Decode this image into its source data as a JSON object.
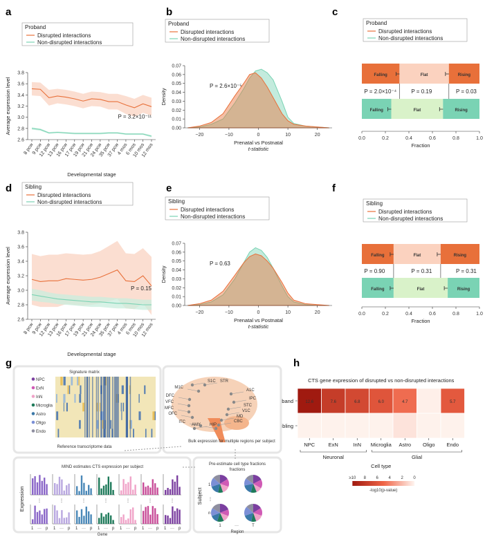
{
  "panel_letters": [
    "a",
    "b",
    "c",
    "d",
    "e",
    "f",
    "g",
    "h"
  ],
  "legend": {
    "proband": "Proband",
    "sibling": "Sibling",
    "disrupted": "Disrupted interactions",
    "nondisrupted": "Non-disrupted interactions"
  },
  "colors": {
    "disrupted": "#e8703a",
    "disrupted_band": "#f9d3c2",
    "nondisrupted": "#7ad3b4",
    "nondisrupted_band": "#c9eede",
    "density_overlap": "#c9b7a0"
  },
  "chart_data": [
    {
      "id": "a",
      "type": "line",
      "legend_title": "Proband",
      "categories": [
        "8 pcw",
        "9 pcw",
        "12 pcw",
        "13 pcw",
        "16 pcw",
        "17 pcw",
        "19 pcw",
        "21 pcw",
        "24 pcw",
        "35 pcw",
        "37 pcw",
        "4 mos",
        "6 mos",
        "10 mos",
        "12 mos"
      ],
      "xlabel": "Developmental stage",
      "ylabel": "Average expression level",
      "ylim": [
        2.6,
        3.8
      ],
      "yticks": [
        "2.6",
        "2.8",
        "3.0",
        "3.2",
        "3.4",
        "3.6",
        "3.8"
      ],
      "annotation": "P = 3.2×10⁻¹¹",
      "series": [
        {
          "name": "Disrupted interactions",
          "values": [
            3.51,
            3.5,
            3.35,
            3.38,
            3.36,
            3.33,
            3.29,
            3.33,
            3.32,
            3.28,
            3.28,
            3.22,
            3.17,
            3.24,
            3.19
          ],
          "band": [
            0.12,
            0.12,
            0.14,
            0.13,
            0.13,
            0.13,
            0.13,
            0.13,
            0.13,
            0.14,
            0.14,
            0.16,
            0.16,
            0.16,
            0.16
          ]
        },
        {
          "name": "Non-disrupted interactions",
          "values": [
            2.8,
            2.78,
            2.72,
            2.73,
            2.72,
            2.71,
            2.71,
            2.71,
            2.71,
            2.72,
            2.72,
            2.7,
            2.7,
            2.7,
            2.66
          ],
          "band": [
            0.02,
            0.02,
            0.015,
            0.015,
            0.015,
            0.015,
            0.015,
            0.015,
            0.015,
            0.015,
            0.015,
            0.015,
            0.015,
            0.015,
            0.02
          ]
        }
      ]
    },
    {
      "id": "b",
      "type": "area",
      "legend_title": "Proband",
      "xlabel": "Prenatal vs Postnatal",
      "xlabel2": "t-statistic",
      "ylabel": "Density",
      "xlim": [
        -25,
        25
      ],
      "ylim": [
        0,
        0.07
      ],
      "xticks": [
        "-20",
        "-10",
        "0",
        "10",
        "20"
      ],
      "yticks": [
        "0.00",
        "0.01",
        "0.02",
        "0.03",
        "0.04",
        "0.05",
        "0.06",
        "0.07"
      ],
      "annotation": "P = 2.6×10⁻⁵",
      "series": [
        {
          "name": "Disrupted interactions",
          "x": [
            -24,
            -20,
            -16,
            -12,
            -8,
            -5,
            -3,
            -1,
            1,
            3,
            5,
            8,
            10,
            12,
            16,
            20,
            24
          ],
          "values": [
            0.0,
            0.002,
            0.006,
            0.016,
            0.036,
            0.05,
            0.06,
            0.062,
            0.056,
            0.046,
            0.034,
            0.016,
            0.008,
            0.004,
            0.002,
            0.001,
            0.0
          ]
        },
        {
          "name": "Non-disrupted interactions",
          "x": [
            -24,
            -20,
            -16,
            -12,
            -8,
            -5,
            -3,
            -1,
            1,
            3,
            5,
            8,
            10,
            12,
            16,
            20,
            24
          ],
          "values": [
            0.0,
            0.001,
            0.004,
            0.01,
            0.028,
            0.044,
            0.056,
            0.064,
            0.066,
            0.062,
            0.054,
            0.03,
            0.012,
            0.005,
            0.002,
            0.001,
            0.0
          ]
        }
      ]
    },
    {
      "id": "c",
      "type": "bar",
      "legend_title": "Proband",
      "xlabel": "Fraction",
      "xticks": [
        "0.0",
        "0.2",
        "0.4",
        "0.6",
        "0.8",
        "1.0"
      ],
      "segments": [
        "Falling",
        "Flat",
        "Rising"
      ],
      "pvalues": [
        "P = 2.0×10⁻⁴",
        "P = 0.19",
        "P = 0.03"
      ],
      "series": [
        {
          "name": "Disrupted interactions",
          "values": [
            0.32,
            0.42,
            0.26
          ]
        },
        {
          "name": "Non-disrupted interactions",
          "values": [
            0.25,
            0.44,
            0.31
          ]
        }
      ]
    },
    {
      "id": "d",
      "type": "line",
      "legend_title": "Sibling",
      "categories": [
        "8 pcw",
        "9 pcw",
        "12 pcw",
        "13 pcw",
        "16 pcw",
        "17 pcw",
        "19 pcw",
        "21 pcw",
        "24 pcw",
        "35 pcw",
        "37 pcw",
        "4 mos",
        "6 mos",
        "10 mos",
        "12 mos"
      ],
      "xlabel": "Developmental stage",
      "ylabel": "Average expression level",
      "ylim": [
        2.6,
        3.8
      ],
      "yticks": [
        "2.6",
        "2.8",
        "3.0",
        "3.2",
        "3.4",
        "3.6",
        "3.8"
      ],
      "annotation": "P = 0.15",
      "series": [
        {
          "name": "Disrupted interactions",
          "values": [
            3.15,
            3.12,
            3.13,
            3.13,
            3.16,
            3.15,
            3.14,
            3.15,
            3.18,
            3.23,
            3.28,
            3.13,
            3.12,
            3.2,
            3.06
          ],
          "band": [
            0.35,
            0.35,
            0.36,
            0.36,
            0.35,
            0.35,
            0.35,
            0.35,
            0.36,
            0.38,
            0.4,
            0.38,
            0.38,
            0.38,
            0.4
          ]
        },
        {
          "name": "Non-disrupted interactions",
          "values": [
            2.94,
            2.92,
            2.9,
            2.88,
            2.87,
            2.86,
            2.85,
            2.84,
            2.84,
            2.83,
            2.82,
            2.82,
            2.81,
            2.8,
            2.8
          ],
          "band": [
            0.08,
            0.08,
            0.07,
            0.07,
            0.07,
            0.07,
            0.07,
            0.07,
            0.07,
            0.07,
            0.07,
            0.07,
            0.07,
            0.07,
            0.07
          ]
        }
      ]
    },
    {
      "id": "e",
      "type": "area",
      "legend_title": "Sibling",
      "xlabel": "Prenatal vs Postnatal",
      "xlabel2": "t-statistic",
      "ylabel": "Density",
      "xlim": [
        -25,
        25
      ],
      "ylim": [
        0,
        0.07
      ],
      "xticks": [
        "-20",
        "-10",
        "0",
        "10",
        "20"
      ],
      "yticks": [
        "0.00",
        "0.01",
        "0.02",
        "0.03",
        "0.04",
        "0.05",
        "0.06",
        "0.07"
      ],
      "annotation": "P = 0.63",
      "series": [
        {
          "name": "Disrupted interactions",
          "x": [
            -24,
            -20,
            -16,
            -12,
            -8,
            -5,
            -3,
            -1,
            1,
            3,
            5,
            8,
            10,
            12,
            16,
            20,
            24
          ],
          "values": [
            0.0,
            0.002,
            0.006,
            0.016,
            0.034,
            0.048,
            0.055,
            0.058,
            0.056,
            0.05,
            0.042,
            0.026,
            0.014,
            0.006,
            0.002,
            0.001,
            0.0
          ]
        },
        {
          "name": "Non-disrupted interactions",
          "x": [
            -24,
            -20,
            -16,
            -12,
            -8,
            -5,
            -3,
            -1,
            1,
            3,
            5,
            8,
            10,
            12,
            16,
            20,
            24
          ],
          "values": [
            0.0,
            0.001,
            0.004,
            0.012,
            0.03,
            0.048,
            0.06,
            0.065,
            0.062,
            0.054,
            0.042,
            0.022,
            0.01,
            0.004,
            0.001,
            0.0,
            0.0
          ]
        }
      ]
    },
    {
      "id": "f",
      "type": "bar",
      "legend_title": "Sibling",
      "xlabel": "Fraction",
      "xticks": [
        "0.0",
        "0.2",
        "0.4",
        "0.6",
        "0.8",
        "1.0"
      ],
      "segments": [
        "Falling",
        "Flat",
        "Rising"
      ],
      "pvalues": [
        "P = 0.90",
        "P = 0.31",
        "P = 0.31"
      ],
      "series": [
        {
          "name": "Disrupted interactions",
          "values": [
            0.27,
            0.4,
            0.33
          ]
        },
        {
          "name": "Non-disrupted interactions",
          "values": [
            0.27,
            0.46,
            0.27
          ]
        }
      ]
    },
    {
      "id": "h",
      "type": "heatmap",
      "title": "CTS gene expression of disrupted vs non-disrupted interactions",
      "rows": [
        "Proband",
        "Sibling"
      ],
      "columns": [
        "NPC",
        "ExN",
        "InN",
        "Microglia",
        "Astro",
        "Oligo",
        "Endo"
      ],
      "values": [
        [
          12.6,
          7.6,
          6.8,
          6.0,
          4.7,
          0.2,
          5.7
        ],
        [
          0.1,
          0.1,
          0.1,
          0.1,
          0.6,
          0.1,
          0.1
        ]
      ],
      "cell_labels": [
        [
          "12.6",
          "7.6",
          "6.8",
          "6.0",
          "4.7",
          "",
          "5.7"
        ],
        [
          "",
          "",
          "",
          "",
          "",
          "",
          ""
        ]
      ],
      "groups": [
        {
          "label": "Neuronal"
        },
        {
          "label": "Glial"
        }
      ],
      "xlabel": "Cell type",
      "colorbar_ticks": [
        "≥10",
        "8",
        "6",
        "4",
        "2",
        "0"
      ],
      "colorbar_label": "-log10(p-value)"
    }
  ],
  "schematic": {
    "signature_title": "Signature matrix",
    "cell_types": [
      "NPC",
      "ExN",
      "InN",
      "Microglia",
      "Astro",
      "Oligo",
      "Endo"
    ],
    "cell_type_colors": [
      "#7b3fa0",
      "#d05ab5",
      "#f0a3c8",
      "#1e7a5a",
      "#3a78a8",
      "#7b8fd6",
      "#8f8fa0"
    ],
    "reference_label": "Reference transcriptome data",
    "regions": [
      "S1C",
      "STR",
      "M1C",
      "A1C",
      "DFC",
      "IPC",
      "VFC",
      "STC",
      "MFC",
      "V1C",
      "OFC",
      "MD",
      "CBC",
      "ITC",
      "AMY",
      "HIP"
    ],
    "bulk_label": "Bulk expression for multiple regions per subject",
    "mind_title": "MIND estimates CTS expression per subject",
    "expr_ylabel": "Expression",
    "gene_label": "Gene",
    "bar_axis": [
      "1",
      "···",
      "p"
    ],
    "pre_title": "Pre-estimate cell type fractions",
    "subject_label": "Subject",
    "region_label": "Region",
    "subject_axis": [
      "1",
      "⋮",
      "n"
    ],
    "region_axis": [
      "1",
      "···",
      "T"
    ]
  }
}
